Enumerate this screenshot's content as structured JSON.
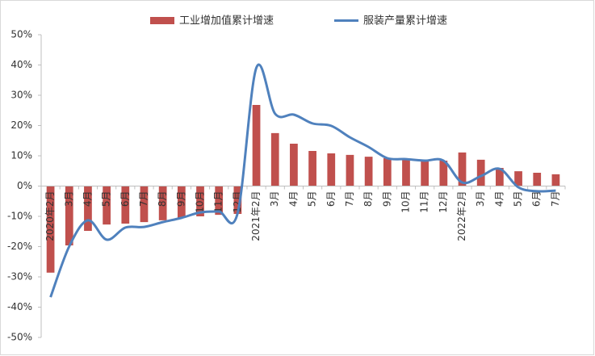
{
  "chart_data": {
    "type": "bar-line",
    "categories": [
      "2020年2月",
      "3月",
      "4月",
      "5月",
      "6月",
      "7月",
      "8月",
      "9月",
      "10月",
      "11月",
      "12月",
      "2021年2月",
      "3月",
      "4月",
      "5月",
      "6月",
      "7月",
      "8月",
      "9月",
      "10月",
      "11月",
      "12月",
      "2022年2月",
      "3月",
      "4月",
      "5月",
      "6月",
      "7月"
    ],
    "series": [
      {
        "name": "工业增加值累计增速",
        "type": "bar",
        "color": "#c0504d",
        "values": [
          -28.6,
          -19.6,
          -14.8,
          -12.7,
          -12.4,
          -11.9,
          -11.3,
          -10.5,
          -10.0,
          -9.5,
          -9.2,
          26.8,
          17.5,
          14.0,
          11.6,
          10.8,
          10.3,
          9.7,
          9.2,
          8.9,
          8.7,
          8.4,
          11.1,
          8.7,
          6.0,
          4.9,
          4.4,
          3.9
        ]
      },
      {
        "name": "服装产量累计增速",
        "type": "line",
        "color": "#4f81bd",
        "values": [
          -36.7,
          -19.9,
          -11.3,
          -17.7,
          -13.7,
          -13.5,
          -11.9,
          -10.5,
          -8.7,
          -8.4,
          -8.9,
          39.1,
          23.9,
          23.6,
          20.7,
          19.9,
          16.1,
          12.9,
          9.2,
          8.9,
          8.4,
          8.4,
          1.2,
          3.3,
          5.7,
          -0.4,
          -1.7,
          -1.5
        ]
      }
    ],
    "ylim": [
      -50,
      50
    ],
    "yticks": [
      {
        "value": -50,
        "label": "-50%"
      },
      {
        "value": -40,
        "label": "-40%"
      },
      {
        "value": -30,
        "label": "-30%"
      },
      {
        "value": -20,
        "label": "-20%"
      },
      {
        "value": -10,
        "label": "-10%"
      },
      {
        "value": 0,
        "label": "0%"
      },
      {
        "value": 10,
        "label": "10%"
      },
      {
        "value": 20,
        "label": "20%"
      },
      {
        "value": 30,
        "label": "30%"
      },
      {
        "value": 40,
        "label": "40%"
      },
      {
        "value": 50,
        "label": "50%"
      }
    ],
    "grid": false,
    "legend": "top"
  }
}
